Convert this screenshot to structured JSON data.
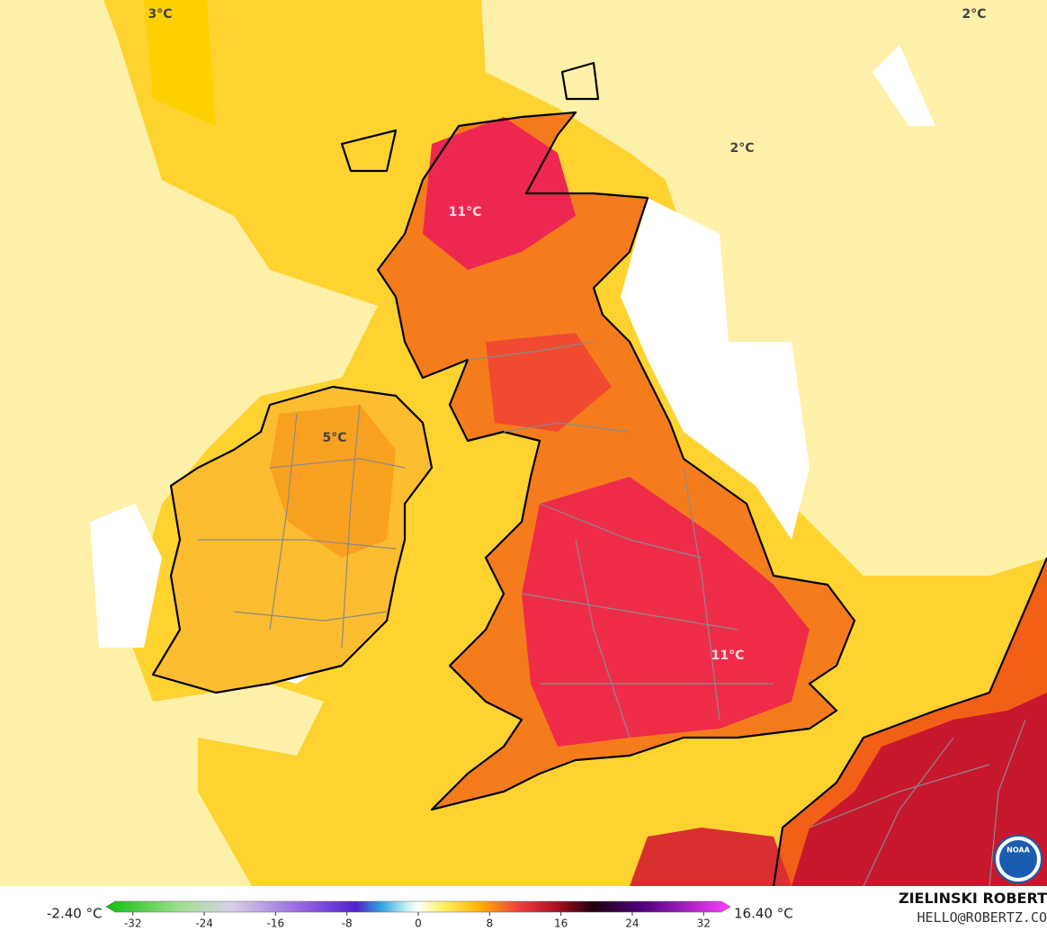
{
  "map": {
    "labels": [
      {
        "text": "3°C"
      },
      {
        "text": "2°C"
      },
      {
        "text": "2°C"
      },
      {
        "text": "11°C"
      },
      {
        "text": "5°C"
      },
      {
        "text": "11°C"
      }
    ]
  },
  "colorbar": {
    "min_label": "-2.40 °C",
    "max_label": "16.40 °C",
    "range": [
      -35,
      35
    ],
    "ticks": [
      -32,
      -24,
      -16,
      -8,
      0,
      8,
      16,
      24,
      32
    ]
  },
  "credit": {
    "name": "ZIELINSKI ROBERT",
    "email": "HELLO@ROBERTZ.CO"
  },
  "logo": "NOAA"
}
